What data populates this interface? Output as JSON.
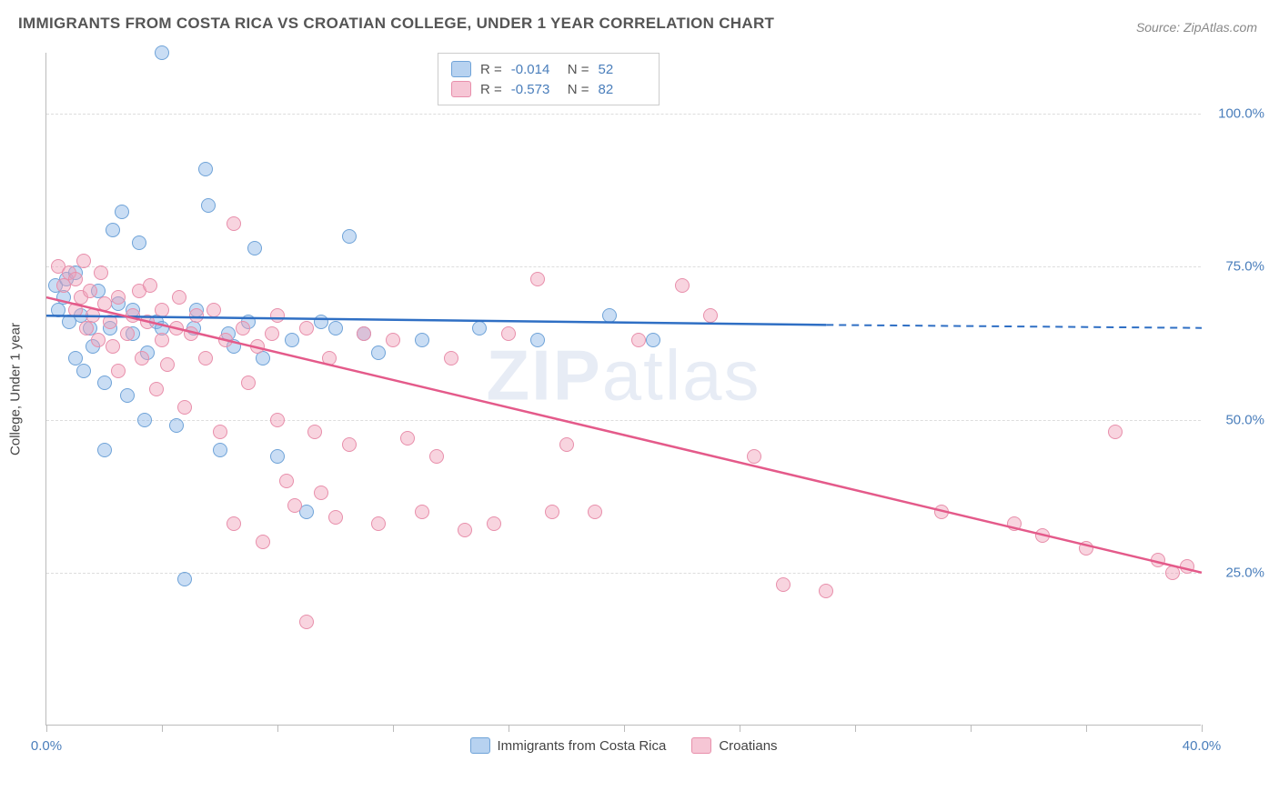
{
  "title": "IMMIGRANTS FROM COSTA RICA VS CROATIAN COLLEGE, UNDER 1 YEAR CORRELATION CHART",
  "source": "Source: ZipAtlas.com",
  "watermark": {
    "strong": "ZIP",
    "light": "atlas"
  },
  "y_axis_title": "College, Under 1 year",
  "chart": {
    "type": "scatter",
    "x_min": 0,
    "x_max": 40,
    "y_min": 0,
    "y_max": 110,
    "y_gridlines": [
      25,
      50,
      75,
      100
    ],
    "y_tick_labels": [
      "25.0%",
      "50.0%",
      "75.0%",
      "100.0%"
    ],
    "x_ticks": [
      0,
      4,
      8,
      12,
      16,
      20,
      24,
      28,
      32,
      36,
      40
    ],
    "x_tick_labels": {
      "0": "0.0%",
      "40": "40.0%"
    },
    "background_color": "#ffffff",
    "grid_color": "#dddddd",
    "axis_color": "#bbbbbb",
    "tick_label_color": "#4a7ebb",
    "marker_radius": 8,
    "series": [
      {
        "name": "Immigrants from Costa Rica",
        "fill": "rgba(135,180,230,0.45)",
        "stroke": "#6fa3d8",
        "line_color": "#2f6fc4",
        "R": "-0.014",
        "N": "52",
        "trend": {
          "x1": 0,
          "y1": 67,
          "x2_solid": 27,
          "y2_solid": 65.5,
          "x2_dash": 40,
          "y2_dash": 65
        },
        "points": [
          [
            0.3,
            72
          ],
          [
            0.4,
            68
          ],
          [
            0.6,
            70
          ],
          [
            0.7,
            73
          ],
          [
            0.8,
            66
          ],
          [
            1.0,
            60
          ],
          [
            1.0,
            74
          ],
          [
            1.2,
            67
          ],
          [
            1.3,
            58
          ],
          [
            1.5,
            65
          ],
          [
            1.6,
            62
          ],
          [
            1.8,
            71
          ],
          [
            2.0,
            56
          ],
          [
            2.0,
            45
          ],
          [
            2.2,
            65
          ],
          [
            2.3,
            81
          ],
          [
            2.5,
            69
          ],
          [
            2.6,
            84
          ],
          [
            2.8,
            54
          ],
          [
            3.0,
            64
          ],
          [
            3.0,
            68
          ],
          [
            3.2,
            79
          ],
          [
            3.4,
            50
          ],
          [
            3.5,
            61
          ],
          [
            3.8,
            66
          ],
          [
            4.0,
            65
          ],
          [
            4.0,
            110
          ],
          [
            4.5,
            49
          ],
          [
            4.8,
            24
          ],
          [
            5.1,
            65
          ],
          [
            5.2,
            68
          ],
          [
            5.5,
            91
          ],
          [
            5.6,
            85
          ],
          [
            6.0,
            45
          ],
          [
            6.3,
            64
          ],
          [
            6.5,
            62
          ],
          [
            7.0,
            66
          ],
          [
            7.2,
            78
          ],
          [
            7.5,
            60
          ],
          [
            8.0,
            44
          ],
          [
            8.5,
            63
          ],
          [
            9.0,
            35
          ],
          [
            9.5,
            66
          ],
          [
            10.0,
            65
          ],
          [
            10.5,
            80
          ],
          [
            11.0,
            64
          ],
          [
            11.5,
            61
          ],
          [
            13.0,
            63
          ],
          [
            15.0,
            65
          ],
          [
            17.0,
            63
          ],
          [
            19.5,
            67
          ],
          [
            21.0,
            63
          ]
        ]
      },
      {
        "name": "Croatians",
        "fill": "rgba(240,160,185,0.45)",
        "stroke": "#e88fab",
        "line_color": "#e45a8a",
        "R": "-0.573",
        "N": "82",
        "trend": {
          "x1": 0,
          "y1": 70,
          "x2_solid": 40,
          "y2_solid": 25,
          "x2_dash": 40,
          "y2_dash": 25
        },
        "points": [
          [
            0.4,
            75
          ],
          [
            0.6,
            72
          ],
          [
            0.8,
            74
          ],
          [
            1.0,
            73
          ],
          [
            1.0,
            68
          ],
          [
            1.2,
            70
          ],
          [
            1.3,
            76
          ],
          [
            1.4,
            65
          ],
          [
            1.5,
            71
          ],
          [
            1.6,
            67
          ],
          [
            1.8,
            63
          ],
          [
            1.9,
            74
          ],
          [
            2.0,
            69
          ],
          [
            2.2,
            66
          ],
          [
            2.3,
            62
          ],
          [
            2.5,
            70
          ],
          [
            2.5,
            58
          ],
          [
            2.8,
            64
          ],
          [
            3.0,
            67
          ],
          [
            3.2,
            71
          ],
          [
            3.3,
            60
          ],
          [
            3.5,
            66
          ],
          [
            3.6,
            72
          ],
          [
            3.8,
            55
          ],
          [
            4.0,
            68
          ],
          [
            4.0,
            63
          ],
          [
            4.2,
            59
          ],
          [
            4.5,
            65
          ],
          [
            4.6,
            70
          ],
          [
            4.8,
            52
          ],
          [
            5.0,
            64
          ],
          [
            5.2,
            67
          ],
          [
            5.5,
            60
          ],
          [
            5.8,
            68
          ],
          [
            6.0,
            48
          ],
          [
            6.2,
            63
          ],
          [
            6.5,
            82
          ],
          [
            6.5,
            33
          ],
          [
            6.8,
            65
          ],
          [
            7.0,
            56
          ],
          [
            7.3,
            62
          ],
          [
            7.5,
            30
          ],
          [
            7.8,
            64
          ],
          [
            8.0,
            50
          ],
          [
            8.0,
            67
          ],
          [
            8.3,
            40
          ],
          [
            8.6,
            36
          ],
          [
            9.0,
            65
          ],
          [
            9.0,
            17
          ],
          [
            9.3,
            48
          ],
          [
            9.5,
            38
          ],
          [
            9.8,
            60
          ],
          [
            10.0,
            34
          ],
          [
            10.5,
            46
          ],
          [
            11.0,
            64
          ],
          [
            11.5,
            33
          ],
          [
            12.0,
            63
          ],
          [
            12.5,
            47
          ],
          [
            13.0,
            35
          ],
          [
            13.5,
            44
          ],
          [
            14.0,
            60
          ],
          [
            14.5,
            32
          ],
          [
            15.5,
            33
          ],
          [
            16.0,
            64
          ],
          [
            17.0,
            73
          ],
          [
            17.5,
            35
          ],
          [
            18.0,
            46
          ],
          [
            19.0,
            35
          ],
          [
            20.5,
            63
          ],
          [
            22.0,
            72
          ],
          [
            23.0,
            67
          ],
          [
            24.5,
            44
          ],
          [
            25.5,
            23
          ],
          [
            27.0,
            22
          ],
          [
            31.0,
            35
          ],
          [
            33.5,
            33
          ],
          [
            34.5,
            31
          ],
          [
            36.0,
            29
          ],
          [
            37.0,
            48
          ],
          [
            38.5,
            27
          ],
          [
            39.0,
            25
          ],
          [
            39.5,
            26
          ]
        ]
      }
    ]
  },
  "stats_box": {
    "rows": [
      {
        "swatch_fill": "rgba(135,180,230,0.6)",
        "swatch_stroke": "#6fa3d8",
        "R_label": "R =",
        "R": "-0.014",
        "N_label": "N =",
        "N": "52"
      },
      {
        "swatch_fill": "rgba(240,160,185,0.6)",
        "swatch_stroke": "#e88fab",
        "R_label": "R =",
        "R": "-0.573",
        "N_label": "N =",
        "N": "82"
      }
    ]
  },
  "bottom_legend": [
    {
      "swatch_fill": "rgba(135,180,230,0.6)",
      "swatch_stroke": "#6fa3d8",
      "label": "Immigrants from Costa Rica"
    },
    {
      "swatch_fill": "rgba(240,160,185,0.6)",
      "swatch_stroke": "#e88fab",
      "label": "Croatians"
    }
  ]
}
